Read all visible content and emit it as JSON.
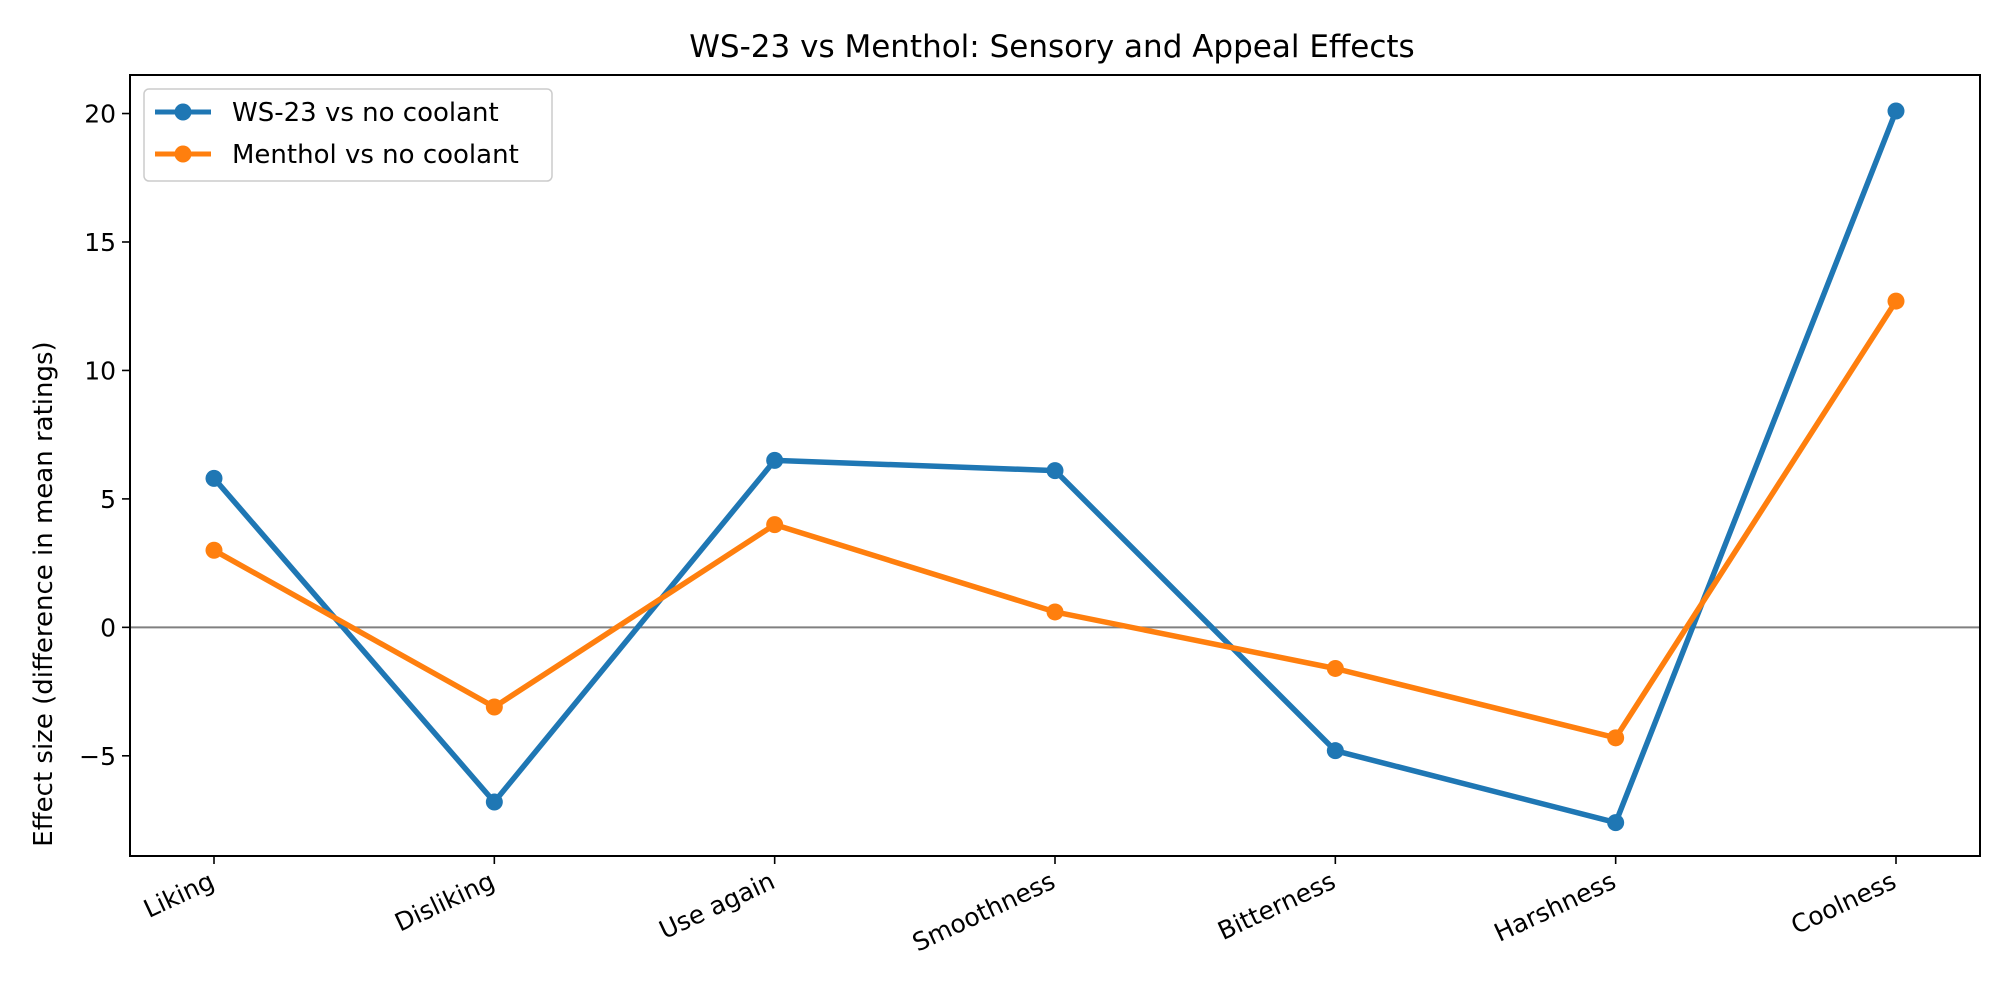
{
  "chart_data": {
    "type": "line",
    "title": "WS-23 vs Menthol: Sensory and Appeal Effects",
    "xlabel": "",
    "ylabel": "Effect size (difference in mean ratings)",
    "categories": [
      "Liking",
      "Disliking",
      "Use again",
      "Smoothness",
      "Bitterness",
      "Harshness",
      "Coolness"
    ],
    "series": [
      {
        "name": "WS-23 vs no coolant",
        "color": "#1f77b4",
        "values": [
          5.8,
          -6.8,
          6.5,
          6.1,
          -4.8,
          -7.6,
          20.1
        ]
      },
      {
        "name": "Menthol vs no coolant",
        "color": "#ff7f0e",
        "values": [
          3.0,
          -3.1,
          4.0,
          0.6,
          -1.6,
          -4.3,
          12.7
        ]
      }
    ],
    "ylim": [
      -8.9,
      21.5
    ],
    "yticks": [
      -5,
      0,
      5,
      10,
      15,
      20
    ],
    "ytick_labels": [
      "−5",
      "0",
      "5",
      "10",
      "15",
      "20"
    ],
    "reference_line": {
      "y": 0,
      "color": "#808080"
    },
    "grid": false,
    "legend_position": "top-left"
  }
}
